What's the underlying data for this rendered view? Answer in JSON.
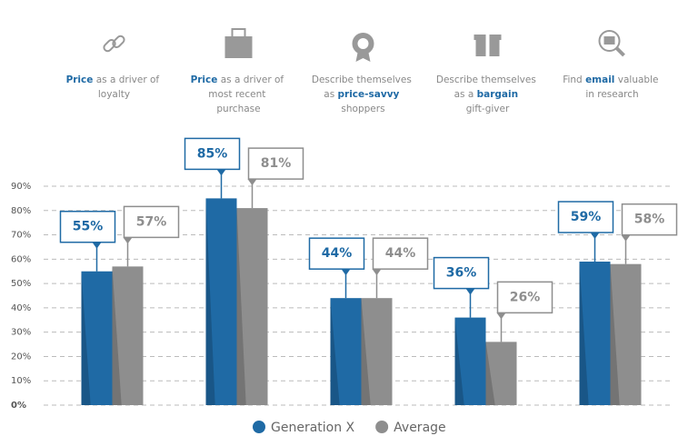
{
  "chart_data": {
    "type": "bar",
    "categories": [
      "Price as a driver of loyalty",
      "Price as a driver of most recent purchase",
      "Describe themselves as price-savvy shoppers",
      "Describe themselves as a bargain gift-giver",
      "Find email valuable in research"
    ],
    "category_emphasis": [
      "Price",
      "Price",
      "price-savvy",
      "bargain",
      "email"
    ],
    "series": [
      {
        "name": "Generation X",
        "color": "#1f6aa5",
        "values": [
          55,
          85,
          44,
          36,
          59
        ],
        "value_labels": [
          "55%",
          "85%",
          "44%",
          "36%",
          "59%"
        ]
      },
      {
        "name": "Average",
        "color": "#8e8e8e",
        "values": [
          57,
          81,
          44,
          26,
          58
        ],
        "value_labels": [
          "57%",
          "81%",
          "44%",
          "26%",
          "58%"
        ]
      }
    ],
    "ylim": [
      0,
      90
    ],
    "yticks": [
      {
        "value": 0,
        "label": "0%"
      },
      {
        "value": 10,
        "label": "10%"
      },
      {
        "value": 20,
        "label": "20%"
      },
      {
        "value": 30,
        "label": "30%"
      },
      {
        "value": 40,
        "label": "40%"
      },
      {
        "value": 50,
        "label": "50%"
      },
      {
        "value": 60,
        "label": "60%"
      },
      {
        "value": 70,
        "label": "70%"
      },
      {
        "value": 80,
        "label": "80%"
      },
      {
        "value": 90,
        "label": "90%"
      }
    ],
    "grid": true
  }
}
